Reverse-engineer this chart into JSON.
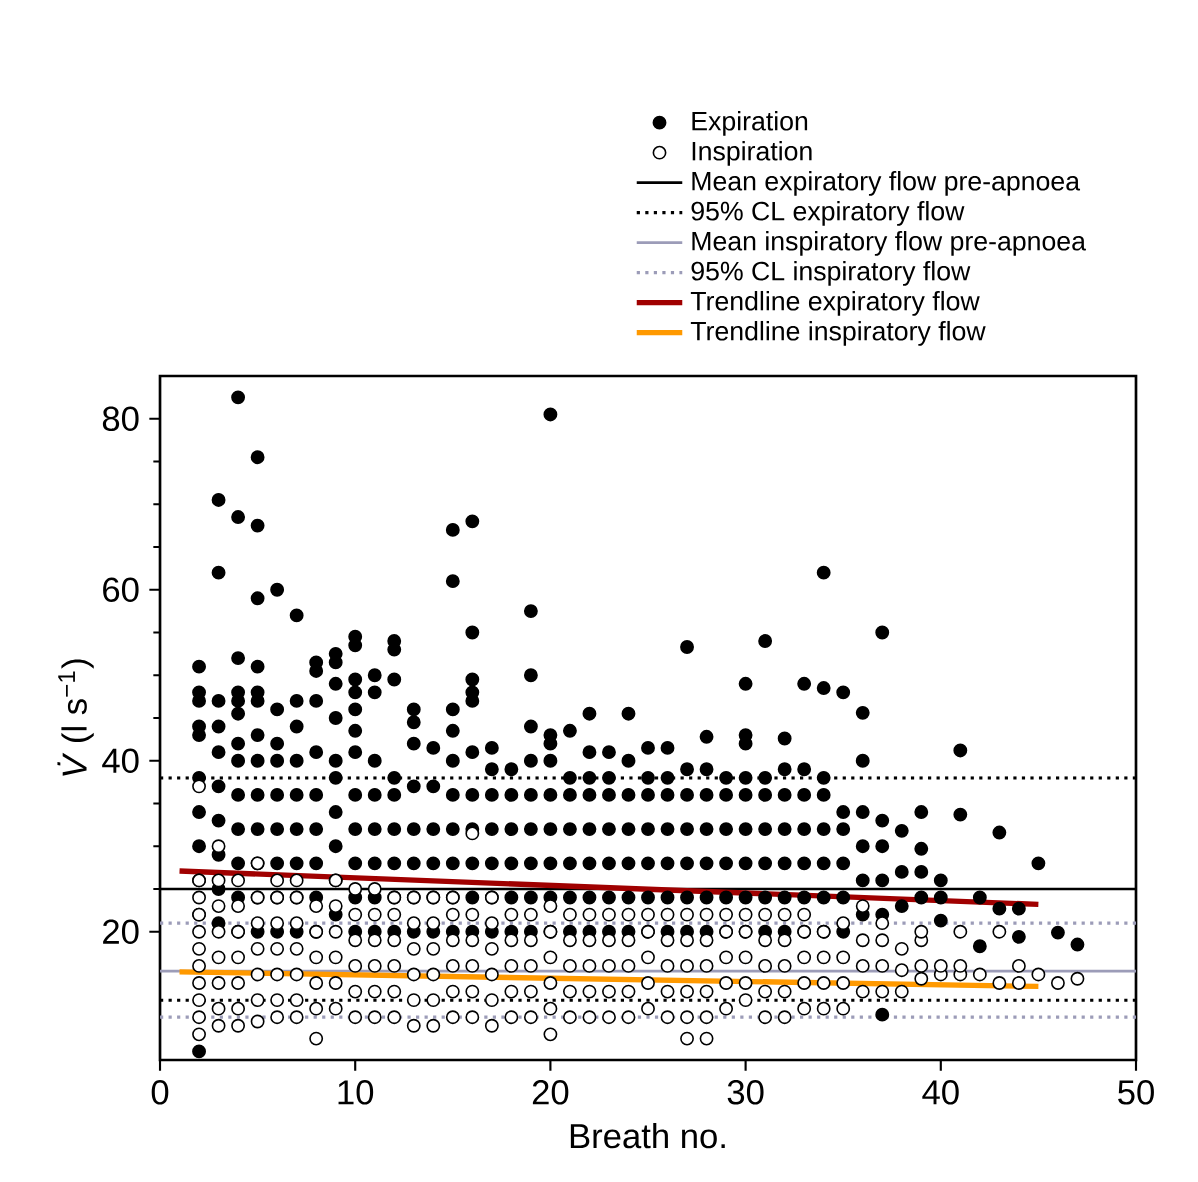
{
  "chart_data": {
    "type": "scatter",
    "xlabel": "Breath no.",
    "ylabel": "*V̇* (l s$^{−1}$)",
    "xlim": [
      0,
      50
    ],
    "ylim": [
      5,
      85
    ],
    "xticks": [
      0,
      10,
      20,
      30,
      40,
      50
    ],
    "yticks": [
      20,
      40,
      60,
      80
    ],
    "legend": "top",
    "grid": false,
    "series": [
      {
        "name": "Expiration",
        "marker": "circle",
        "color": "#000000",
        "x": [
          2,
          2,
          2,
          2,
          2,
          2,
          2,
          2,
          2,
          2,
          2,
          3,
          3,
          3,
          3,
          3,
          3,
          3,
          3,
          3,
          3,
          4,
          4,
          4,
          4,
          4,
          4,
          4,
          4,
          4,
          4,
          4,
          4,
          4,
          5,
          5,
          5,
          5,
          5,
          5,
          5,
          5,
          5,
          5,
          5,
          5,
          5,
          6,
          6,
          6,
          6,
          6,
          6,
          6,
          6,
          6,
          7,
          7,
          7,
          7,
          7,
          7,
          7,
          7,
          7,
          8,
          8,
          8,
          8,
          8,
          8,
          8,
          8,
          8,
          9,
          9,
          9,
          9,
          9,
          9,
          9,
          9,
          9,
          9,
          10,
          10,
          10,
          10,
          10,
          10,
          10,
          10,
          10,
          10,
          10,
          10,
          11,
          11,
          11,
          11,
          11,
          11,
          11,
          11,
          12,
          12,
          12,
          12,
          12,
          12,
          12,
          12,
          12,
          13,
          13,
          13,
          13,
          13,
          13,
          13,
          13,
          14,
          14,
          14,
          14,
          14,
          14,
          15,
          15,
          15,
          15,
          15,
          15,
          15,
          15,
          15,
          15,
          16,
          16,
          16,
          16,
          16,
          16,
          16,
          16,
          16,
          16,
          16,
          17,
          17,
          17,
          17,
          17,
          17,
          17,
          18,
          18,
          18,
          18,
          18,
          18,
          19,
          19,
          19,
          19,
          19,
          19,
          19,
          19,
          19,
          20,
          20,
          20,
          20,
          20,
          20,
          20,
          20,
          20,
          21,
          21,
          21,
          21,
          21,
          21,
          21,
          22,
          22,
          22,
          22,
          22,
          22,
          22,
          22,
          23,
          23,
          23,
          23,
          23,
          23,
          23,
          24,
          24,
          24,
          24,
          24,
          24,
          24,
          25,
          25,
          25,
          25,
          25,
          25,
          25,
          26,
          26,
          26,
          26,
          26,
          26,
          26,
          27,
          27,
          27,
          27,
          27,
          27,
          27,
          28,
          28,
          28,
          28,
          28,
          28,
          28,
          29,
          29,
          29,
          29,
          29,
          29,
          30,
          30,
          30,
          30,
          30,
          30,
          30,
          30,
          30,
          31,
          31,
          31,
          31,
          31,
          31,
          31,
          32,
          32,
          32,
          32,
          32,
          32,
          32,
          33,
          33,
          33,
          33,
          33,
          33,
          33,
          34,
          34,
          34,
          34,
          34,
          34,
          34,
          34,
          35,
          35,
          35,
          35,
          35,
          35,
          36,
          36,
          36,
          36,
          36,
          36,
          37,
          37,
          37,
          37,
          37,
          37,
          38,
          38,
          38,
          39,
          39,
          39,
          39,
          40,
          40,
          40,
          41,
          41,
          42,
          42,
          43,
          43,
          44,
          44,
          45,
          46,
          47
        ],
        "values": [
          6,
          22,
          26,
          30,
          34,
          38,
          43,
          44,
          47,
          48,
          51,
          21,
          25,
          29,
          33,
          37,
          41,
          44,
          47,
          62,
          70.5,
          20,
          24,
          28,
          32,
          36,
          40,
          42,
          45.5,
          47,
          48,
          52,
          68.5,
          82.5,
          20,
          24,
          28,
          32,
          36,
          40,
          43,
          47,
          48,
          51,
          59,
          67.5,
          75.5,
          20,
          24,
          28,
          32,
          36,
          40,
          42,
          46,
          60,
          20,
          24,
          28,
          32,
          36,
          40,
          44,
          47,
          57,
          20,
          24,
          28,
          32,
          36,
          41,
          47,
          50.5,
          51.5,
          22,
          26,
          30,
          34,
          38,
          40,
          45,
          49,
          51.5,
          52.5,
          20,
          24,
          28,
          32,
          36,
          41,
          43.5,
          46,
          48,
          49.5,
          53.5,
          54.5,
          20,
          24,
          28,
          32,
          36,
          40,
          48,
          50,
          20,
          24,
          28,
          32,
          36,
          38,
          49.5,
          53,
          54,
          20,
          24,
          28,
          32,
          37,
          42,
          44.5,
          46,
          20,
          24,
          28,
          32,
          37,
          41.5,
          20,
          24,
          28,
          32,
          36,
          40,
          43.5,
          46,
          61,
          67,
          20,
          24,
          28,
          32,
          36,
          41,
          47,
          48,
          49.5,
          55,
          68,
          20,
          24,
          28,
          32,
          36,
          39,
          41.5,
          20,
          24,
          28,
          32,
          36,
          39,
          20,
          24,
          28,
          32,
          36,
          40,
          44,
          50,
          57.5,
          20,
          24,
          28,
          32,
          36,
          40,
          42,
          43,
          80.5,
          20,
          24,
          28,
          32,
          36,
          38,
          43.5,
          20,
          24,
          28,
          32,
          36,
          38,
          41,
          45.5,
          20,
          24,
          28,
          32,
          36,
          38,
          41,
          20,
          24,
          28,
          32,
          36,
          40,
          45.5,
          20,
          24,
          28,
          32,
          36,
          38,
          41.5,
          20,
          24,
          28,
          32,
          36,
          38,
          41.5,
          20,
          24,
          28,
          32,
          36,
          39,
          53.3,
          20,
          24,
          28,
          32,
          36,
          39,
          42.8,
          20,
          24,
          28,
          32,
          36,
          38,
          20,
          24,
          28,
          32,
          36,
          38,
          42,
          43,
          49,
          20,
          24,
          28,
          32,
          36,
          38,
          54,
          20,
          24,
          28,
          32,
          36,
          39,
          42.6,
          20,
          24,
          28,
          32,
          36,
          39,
          49,
          20,
          24,
          28,
          32,
          36,
          38,
          48.5,
          62,
          20,
          24,
          28,
          32,
          34,
          48,
          22,
          26,
          30,
          34,
          40,
          45.6,
          10.3,
          22,
          26,
          30,
          33,
          55,
          23,
          27,
          31.8,
          24,
          27,
          29.7,
          34,
          21.3,
          24,
          26,
          33.7,
          41.2,
          18.3,
          24,
          22.7,
          31.6,
          19.4,
          22.7,
          28,
          19.9,
          18.5
        ]
      },
      {
        "name": "Inspiration",
        "marker": "circle",
        "color": "#ffffff",
        "x": [
          2,
          2,
          2,
          2,
          2,
          2,
          2,
          2,
          2,
          2,
          2,
          3,
          3,
          3,
          3,
          3,
          3,
          3,
          3,
          4,
          4,
          4,
          4,
          4,
          4,
          4,
          5,
          5,
          5,
          5,
          5,
          5,
          5,
          6,
          6,
          6,
          6,
          6,
          6,
          6,
          7,
          7,
          7,
          7,
          7,
          7,
          7,
          8,
          8,
          8,
          8,
          8,
          8,
          9,
          9,
          9,
          9,
          9,
          9,
          10,
          10,
          10,
          10,
          10,
          10,
          11,
          11,
          11,
          11,
          11,
          11,
          12,
          12,
          12,
          12,
          12,
          12,
          13,
          13,
          13,
          13,
          13,
          13,
          14,
          14,
          14,
          14,
          14,
          14,
          15,
          15,
          15,
          15,
          15,
          15,
          16,
          16,
          16,
          16,
          16,
          16,
          17,
          17,
          17,
          17,
          17,
          17,
          18,
          18,
          18,
          18,
          18,
          19,
          19,
          19,
          19,
          19,
          20,
          20,
          20,
          20,
          20,
          20,
          21,
          21,
          21,
          21,
          21,
          22,
          22,
          22,
          22,
          22,
          23,
          23,
          23,
          23,
          23,
          24,
          24,
          24,
          24,
          24,
          25,
          25,
          25,
          25,
          25,
          26,
          26,
          26,
          26,
          26,
          27,
          27,
          27,
          27,
          27,
          27,
          28,
          28,
          28,
          28,
          28,
          28,
          29,
          29,
          29,
          29,
          29,
          30,
          30,
          30,
          30,
          30,
          31,
          31,
          31,
          31,
          31,
          32,
          32,
          32,
          32,
          32,
          33,
          33,
          33,
          33,
          33,
          34,
          34,
          34,
          34,
          35,
          35,
          35,
          35,
          36,
          36,
          36,
          36,
          37,
          37,
          37,
          37,
          38,
          38,
          38,
          39,
          39,
          39,
          39,
          40,
          40,
          41,
          41,
          41,
          42,
          43,
          43,
          44,
          44,
          45,
          46,
          47
        ],
        "values": [
          8,
          10,
          12,
          14,
          16,
          18,
          20,
          22,
          24,
          26,
          37,
          9,
          11,
          14,
          17,
          20,
          23,
          26,
          30,
          9,
          11,
          14,
          17,
          20,
          23,
          26,
          9.5,
          12,
          15,
          18,
          21,
          24,
          28,
          10,
          12,
          15,
          18,
          21,
          24,
          26,
          10,
          12,
          15,
          18,
          21,
          24,
          26,
          7.5,
          11,
          14,
          17,
          20,
          23,
          11,
          14,
          17,
          20,
          23,
          26,
          10,
          13,
          16,
          19,
          22,
          25,
          10,
          13,
          16,
          19,
          22,
          25,
          10,
          13,
          16,
          19,
          22,
          24,
          9,
          12,
          15,
          18,
          21,
          24,
          9,
          12,
          15,
          18,
          21,
          24,
          10,
          13,
          16,
          19,
          22,
          24,
          10,
          13,
          16,
          19,
          22,
          31.5,
          9,
          12,
          15,
          18,
          21,
          24,
          10,
          13,
          16,
          19,
          22,
          10,
          13,
          16,
          19,
          22,
          8,
          11,
          14,
          17,
          20,
          23,
          10,
          13,
          16,
          19,
          22,
          10,
          13,
          16,
          19,
          22,
          10,
          13,
          16,
          19,
          22,
          10,
          13,
          16,
          19,
          22,
          11,
          14,
          17,
          20,
          22,
          10,
          13,
          16,
          19,
          22,
          7.5,
          10,
          13,
          16,
          19,
          22,
          7.5,
          10,
          13,
          16,
          19,
          22,
          11,
          14,
          17,
          20,
          22,
          12,
          14,
          17,
          20,
          22,
          10,
          13,
          16,
          19,
          22,
          10,
          13,
          16,
          19,
          22,
          11,
          14,
          17,
          20,
          22,
          11,
          14,
          17,
          20,
          11,
          14,
          17,
          21,
          13,
          16,
          19,
          23,
          13,
          16,
          19,
          21,
          13,
          15.5,
          18,
          14.5,
          16,
          19,
          20,
          15,
          16,
          15,
          16,
          20,
          15,
          14,
          20,
          14,
          16,
          15,
          14,
          14.5
        ]
      },
      {
        "name": "Trendline expiratory flow",
        "type": "line",
        "marker": "none",
        "color": "#a00000",
        "x": [
          1,
          45
        ],
        "values": [
          27.1,
          23.2
        ]
      },
      {
        "name": "Trendline inspiratory flow",
        "type": "line",
        "marker": "none",
        "color": "#ff9900",
        "x": [
          1,
          45
        ],
        "values": [
          15.3,
          13.6
        ]
      }
    ],
    "ref_lines": [
      {
        "axis": "y",
        "value": 25,
        "label": "Mean expiratory flow pre-apnoea",
        "color": "#000000",
        "line_style": "solid"
      },
      {
        "axis": "y",
        "value": 38,
        "label": "95% CL expiratory flow",
        "color": "#000000",
        "line_style": "dotted"
      },
      {
        "axis": "y",
        "value": 12,
        "color": "#000000",
        "line_style": "dotted"
      },
      {
        "axis": "y",
        "value": 15.4,
        "label": "Mean inspiratory flow pre-apnoea",
        "color": "#9c9cb8",
        "line_style": "solid"
      },
      {
        "axis": "y",
        "value": 21,
        "label": "95% CL inspiratory flow",
        "color": "#9c9cb8",
        "line_style": "dotted"
      },
      {
        "axis": "y",
        "value": 10,
        "color": "#9c9cb8",
        "line_style": "dotted"
      }
    ]
  }
}
